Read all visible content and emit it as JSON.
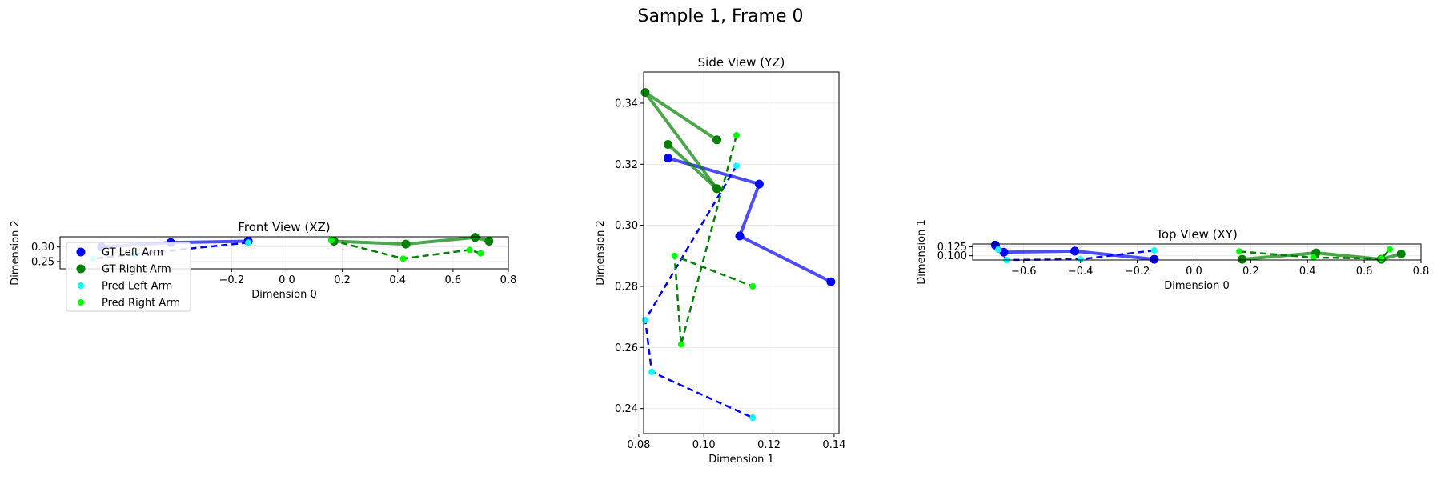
{
  "figure": {
    "suptitle": "Sample 1, Frame 0"
  },
  "chart_data": [
    {
      "type": "line",
      "title": "Front View (XZ)",
      "xlabel": "Dimension 0",
      "ylabel": "Dimension 2",
      "xlim": [
        -0.82,
        0.8
      ],
      "ylim": [
        0.225,
        0.335
      ],
      "xticks": [
        -0.2,
        0.0,
        0.2,
        0.4,
        0.6,
        0.8
      ],
      "xtick_labels": [
        "−0.2",
        "0.0",
        "0.2",
        "0.4",
        "0.6",
        "0.8"
      ],
      "yticks": [
        0.25,
        0.3
      ],
      "ytick_labels": [
        "0.25",
        "0.30"
      ],
      "grid": true,
      "legend": {
        "placement": "lower-left",
        "entries": [
          "GT Left Arm",
          "GT Right Arm",
          "Pred Left Arm",
          "Pred Right Arm"
        ]
      },
      "series": [
        {
          "name": "GT Left Arm",
          "style": "solid",
          "color": "#0000ff",
          "x": [
            -0.14,
            -0.42,
            -0.67
          ],
          "y": [
            0.32,
            0.315,
            0.3
          ]
        },
        {
          "name": "GT Right Arm",
          "style": "solid",
          "color": "#008000",
          "x": [
            0.17,
            0.43,
            0.68,
            0.73
          ],
          "y": [
            0.32,
            0.31,
            0.333,
            0.32
          ]
        },
        {
          "name": "Pred Left Arm",
          "style": "dashed",
          "color": "#00ffff",
          "x": [
            -0.14,
            -0.55,
            -0.7
          ],
          "y": [
            0.315,
            0.275,
            0.26
          ]
        },
        {
          "name": "Pred Right Arm",
          "style": "dashed",
          "color": "#00ff00",
          "x": [
            0.16,
            0.42,
            0.66,
            0.7
          ],
          "y": [
            0.323,
            0.26,
            0.29,
            0.278
          ]
        }
      ]
    },
    {
      "type": "line",
      "title": "Side View (YZ)",
      "xlabel": "Dimension 1",
      "ylabel": "Dimension 2",
      "xlim": [
        0.0815,
        0.1415
      ],
      "ylim": [
        0.2318,
        0.3502
      ],
      "xticks": [
        0.08,
        0.1,
        0.12,
        0.14
      ],
      "xtick_labels": [
        "0.08",
        "0.10",
        "0.12",
        "0.14"
      ],
      "yticks": [
        0.24,
        0.26,
        0.28,
        0.3,
        0.32,
        0.34
      ],
      "ytick_labels": [
        "0.24",
        "0.26",
        "0.28",
        "0.30",
        "0.32",
        "0.34"
      ],
      "grid": true,
      "series": [
        {
          "name": "GT Left Arm",
          "style": "solid",
          "color": "#0000ff",
          "x": [
            0.089,
            0.117,
            0.111,
            0.139
          ],
          "y": [
            0.322,
            0.3135,
            0.2965,
            0.2815
          ]
        },
        {
          "name": "GT Right Arm",
          "style": "solid",
          "color": "#008000",
          "x": [
            0.104,
            0.082,
            0.104
          ],
          "y": [
            0.328,
            0.3435,
            0.312
          ]
        },
        {
          "name": "GT Right Arm",
          "style": "solid",
          "color": "#008000",
          "x": [
            0.089,
            0.104
          ],
          "y": [
            0.3265,
            0.312
          ]
        },
        {
          "name": "Pred Left Arm",
          "style": "dashed",
          "color": "#00ffff",
          "x": [
            0.11,
            0.082,
            0.084,
            0.115
          ],
          "y": [
            0.3195,
            0.269,
            0.252,
            0.237
          ]
        },
        {
          "name": "Pred Right Arm",
          "style": "dashed",
          "color": "#00ff00",
          "x": [
            0.11,
            0.093,
            0.091,
            0.115
          ],
          "y": [
            0.3295,
            0.261,
            0.29,
            0.28
          ]
        }
      ]
    },
    {
      "type": "line",
      "title": "Top View (XY)",
      "xlabel": "Dimension 0",
      "ylabel": "Dimension 1",
      "xlim": [
        -0.78,
        0.8
      ],
      "ylim": [
        0.088,
        0.133
      ],
      "xticks": [
        -0.6,
        -0.4,
        -0.2,
        0.0,
        0.2,
        0.4,
        0.6,
        0.8
      ],
      "xtick_labels": [
        "−0.6",
        "−0.4",
        "−0.2",
        "0.0",
        "0.2",
        "0.4",
        "0.6",
        "0.8"
      ],
      "yticks": [
        0.1,
        0.125
      ],
      "ytick_labels": [
        "0.100",
        "0.125"
      ],
      "grid": true,
      "series": [
        {
          "name": "GT Left Arm",
          "style": "solid",
          "color": "#0000ff",
          "x": [
            -0.7,
            -0.67,
            -0.42,
            -0.14
          ],
          "y": [
            0.13,
            0.11,
            0.113,
            0.09
          ]
        },
        {
          "name": "GT Right Arm",
          "style": "solid",
          "color": "#008000",
          "x": [
            0.17,
            0.43,
            0.66,
            0.73
          ],
          "y": [
            0.09,
            0.108,
            0.09,
            0.105
          ]
        },
        {
          "name": "Pred Left Arm",
          "style": "dashed",
          "color": "#00ffff",
          "x": [
            -0.14,
            -0.4,
            -0.66,
            -0.69
          ],
          "y": [
            0.115,
            0.09,
            0.088,
            0.117
          ]
        },
        {
          "name": "Pred Right Arm",
          "style": "dashed",
          "color": "#00ff00",
          "x": [
            0.16,
            0.42,
            0.66,
            0.69
          ],
          "y": [
            0.112,
            0.095,
            0.092,
            0.118
          ]
        }
      ]
    }
  ]
}
